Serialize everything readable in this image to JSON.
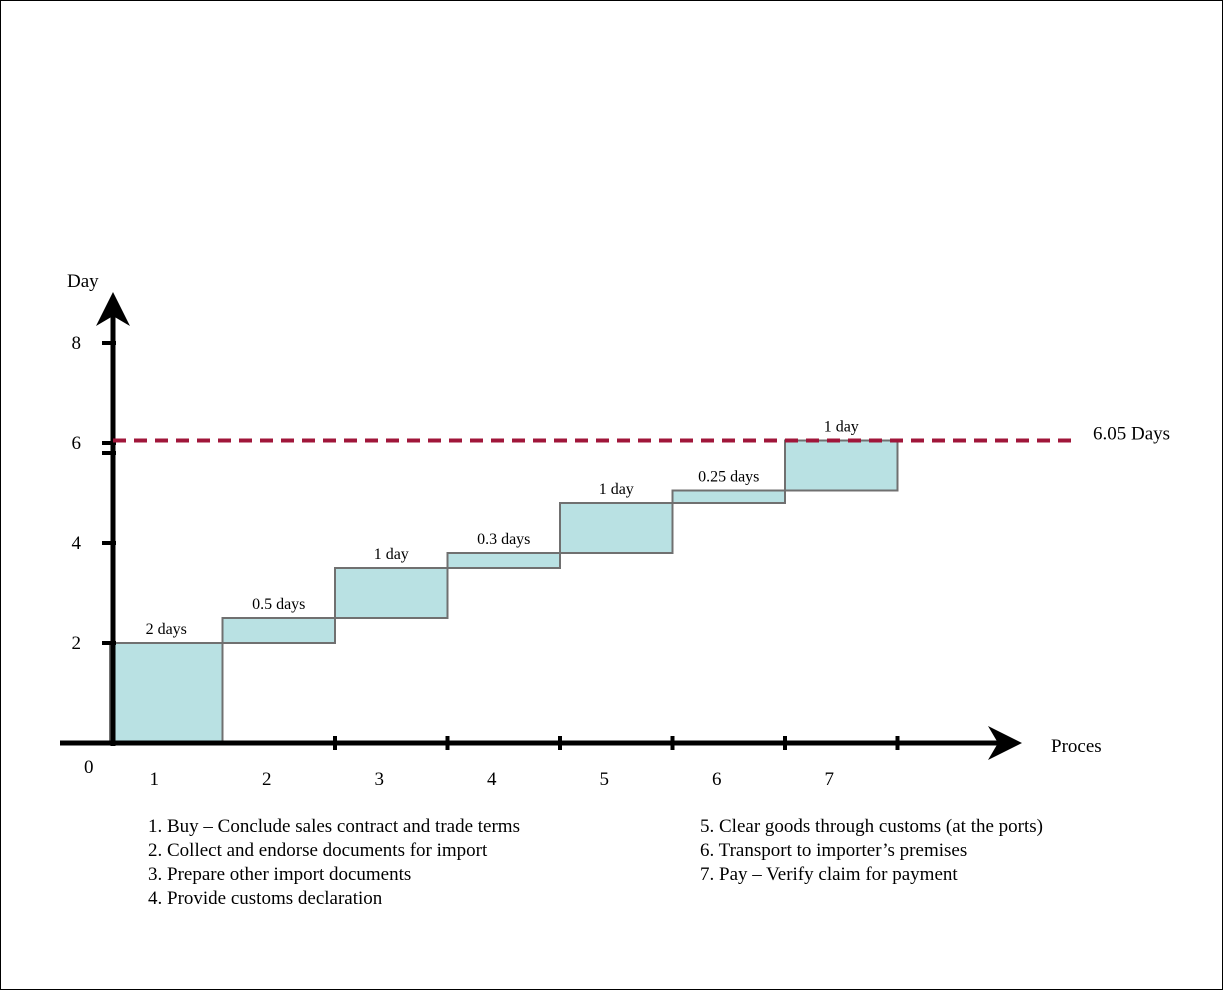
{
  "chart_data": {
    "type": "bar",
    "subtype": "waterfall",
    "ylabel": "Day",
    "xlabel": "Proces",
    "origin_label": "0",
    "ylim": [
      0,
      8
    ],
    "yticks": [
      2,
      4,
      6,
      8
    ],
    "categories": [
      "1",
      "2",
      "3",
      "4",
      "5",
      "6",
      "7"
    ],
    "values": [
      2,
      0.5,
      1,
      0.3,
      1,
      0.25,
      1
    ],
    "data_labels": [
      "2 days",
      "0.5 days",
      "1 day",
      "0.3 days",
      "1 day",
      "0.25 days",
      "1 day"
    ],
    "total_line": {
      "value": 6.05,
      "label": "6.05 Days",
      "color": "#a0163a"
    },
    "bar_fill": "#b9e1e3",
    "bar_stroke": "#707070",
    "legend": {
      "left": [
        "1. Buy – Conclude sales contract and trade terms",
        "2. Collect and endorse documents for import",
        "3. Prepare other import documents",
        "4. Provide customs declaration"
      ],
      "right": [
        "5. Clear goods through customs (at the ports)",
        "6. Transport to importer’s premises",
        "7. Pay – Verify claim for payment"
      ]
    }
  }
}
